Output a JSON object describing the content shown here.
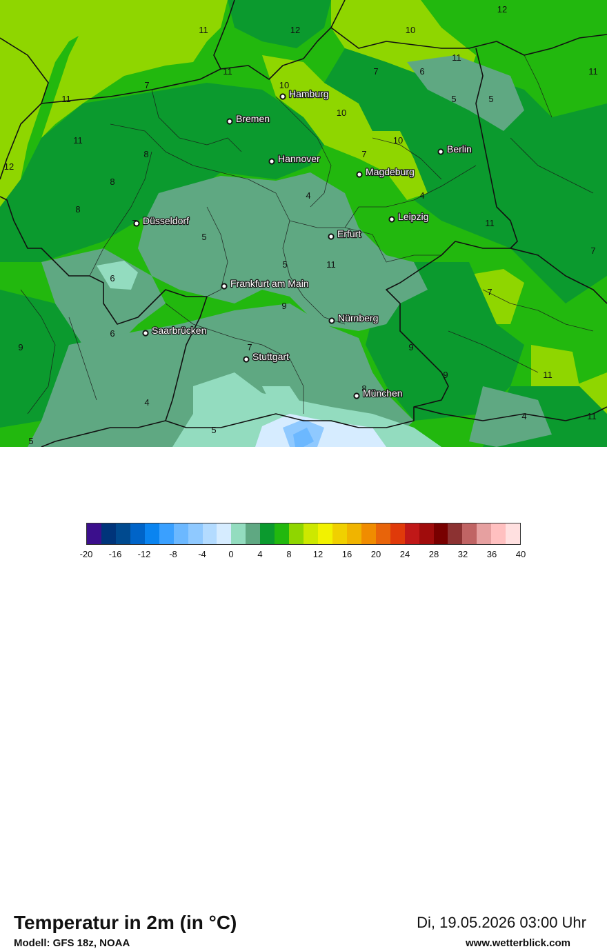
{
  "map": {
    "cities": [
      {
        "name": "Hamburg"
      },
      {
        "name": "Bremen"
      },
      {
        "name": "Berlin"
      },
      {
        "name": "Hannover"
      },
      {
        "name": "Magdeburg"
      },
      {
        "name": "Leipzig"
      },
      {
        "name": "Düsseldorf"
      },
      {
        "name": "Erfurt"
      },
      {
        "name": "Frankfurt am Main"
      },
      {
        "name": "Nürnberg"
      },
      {
        "name": "Saarbrücken"
      },
      {
        "name": "Stuttgart"
      },
      {
        "name": "München"
      }
    ],
    "isoline_labels": [
      "11",
      "12",
      "10",
      "7",
      "6",
      "11",
      "11",
      "11",
      "10",
      "5",
      "5",
      "7",
      "11",
      "10",
      "11",
      "10",
      "12",
      "8",
      "7",
      "8",
      "8",
      "4",
      "4",
      "11",
      "7",
      "5",
      "5",
      "11",
      "7",
      "6",
      "9",
      "7",
      "6",
      "9",
      "7",
      "9",
      "9",
      "8",
      "11",
      "4",
      "4",
      "5",
      "5",
      "11",
      "12"
    ]
  },
  "footer": {
    "title": "Temperatur in 2m (in °C)",
    "model": "Modell: GFS 18z, NOAA",
    "datetime": "Di, 19.05.2026 03:00 Uhr",
    "website": "www.wetterblick.com"
  },
  "colorbar": {
    "ticks": [
      "-20",
      "-16",
      "-12",
      "-8",
      "-4",
      "0",
      "4",
      "8",
      "12",
      "16",
      "20",
      "24",
      "28",
      "32",
      "36",
      "40"
    ],
    "colors": [
      "#3b0f8c",
      "#00347a",
      "#004a8f",
      "#0064c8",
      "#0a84f0",
      "#3aa0ff",
      "#6cb8ff",
      "#8fc9ff",
      "#b3dbff",
      "#d6ecff",
      "#93dcbf",
      "#5fa882",
      "#0b9a2e",
      "#22b80e",
      "#8fd600",
      "#cde800",
      "#f2f200",
      "#f0d000",
      "#f0b400",
      "#f08c00",
      "#e8640a",
      "#e03a0a",
      "#c01818",
      "#a00c0c",
      "#780000",
      "#8c3232",
      "#c06464",
      "#e6a0a0",
      "#ffc0c0",
      "#ffe0e0"
    ]
  }
}
